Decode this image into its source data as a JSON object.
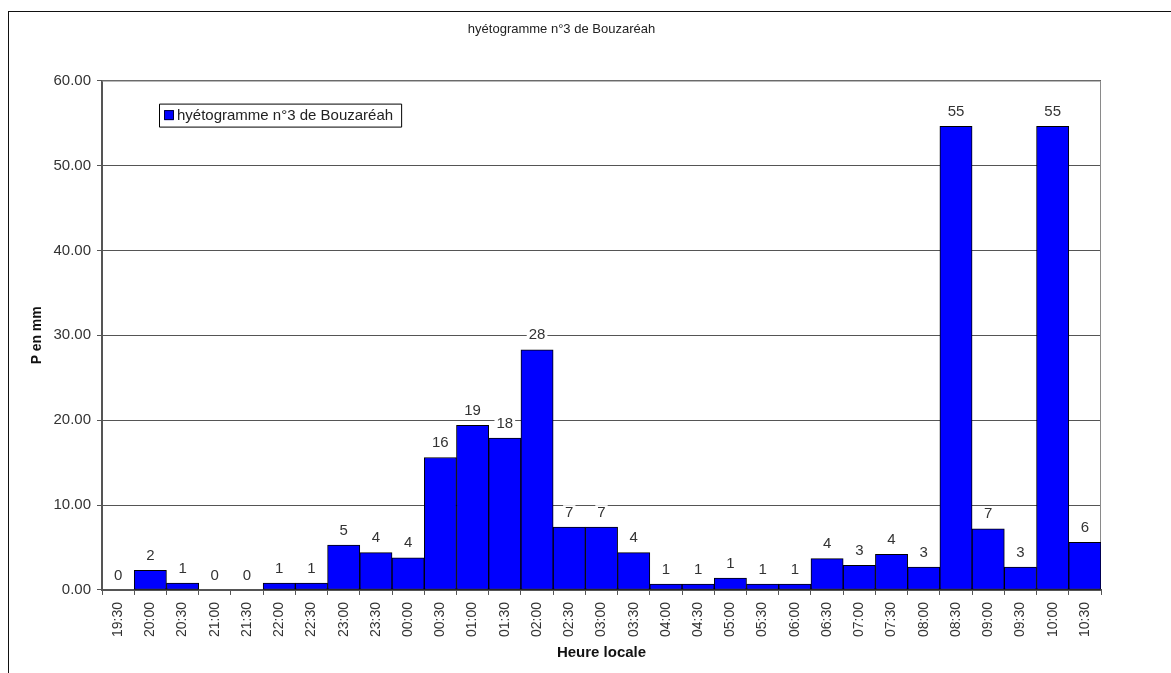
{
  "chart_data": {
    "type": "bar",
    "title": "hyétogramme n°3 de Bouzaréah",
    "xlabel": "Heure locale",
    "ylabel": "P en mm",
    "categories": [
      "19:30",
      "20:00",
      "20:30",
      "21:00",
      "21:30",
      "22:00",
      "22:30",
      "23:00",
      "23:30",
      "00:00",
      "00:30",
      "01:00",
      "01:30",
      "02:00",
      "02:30",
      "03:00",
      "03:30",
      "04:00",
      "04:30",
      "05:00",
      "05:30",
      "06:00",
      "06:30",
      "07:00",
      "07:30",
      "08:00",
      "08:30",
      "09:00",
      "09:30",
      "10:00",
      "10:30"
    ],
    "series": [
      {
        "name": "hyétogramme n°3 de Bouzaréah",
        "color": "#0000ff",
        "values": [
          0,
          2.3,
          0.8,
          0,
          0,
          0.8,
          0.8,
          5.3,
          4.4,
          3.8,
          15.6,
          19.4,
          17.9,
          28.3,
          7.4,
          7.4,
          4.4,
          0.7,
          0.7,
          1.4,
          0.7,
          0.7,
          3.7,
          2.9,
          4.2,
          2.7,
          54.6,
          7.2,
          2.7,
          54.6,
          5.6
        ],
        "value_labels": [
          "0",
          "2",
          "1",
          "0",
          "0",
          "1",
          "1",
          "5",
          "4",
          "4",
          "16",
          "19",
          "18",
          "28",
          "7",
          "7",
          "4",
          "1",
          "1",
          "1",
          "1",
          "1",
          "4",
          "3",
          "4",
          "3",
          "55",
          "7",
          "3",
          "55",
          "6"
        ]
      }
    ],
    "ylim": [
      0,
      60
    ],
    "yticks": [
      {
        "value": 0,
        "label": "0.00"
      },
      {
        "value": 10,
        "label": "10.00"
      },
      {
        "value": 20,
        "label": "20.00"
      },
      {
        "value": 30,
        "label": "30.00"
      },
      {
        "value": 40,
        "label": "40.00"
      },
      {
        "value": 50,
        "label": "50.00"
      },
      {
        "value": 60,
        "label": "60.00"
      }
    ],
    "grid": "y",
    "legend": "top left"
  }
}
